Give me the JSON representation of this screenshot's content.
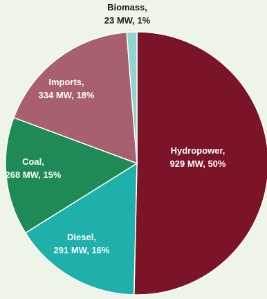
{
  "chart_data": {
    "type": "pie",
    "unit": "MW",
    "start_angle_deg": 0,
    "direction": "clockwise",
    "slices": [
      {
        "name": "Hydropower",
        "value": 929,
        "percent_label": "50%",
        "label_line1": "Hydropower,",
        "label_line2": "929 MW, 50%",
        "color": "#7b1426",
        "label_color": "light"
      },
      {
        "name": "Diesel",
        "value": 291,
        "percent_label": "16%",
        "label_line1": "Diesel,",
        "label_line2": "291 MW, 16%",
        "color": "#20b0ab",
        "label_color": "light"
      },
      {
        "name": "Coal",
        "value": 268,
        "percent_label": "15%",
        "label_line1": "Coal,",
        "label_line2": "268 MW, 15%",
        "color": "#1f8a55",
        "label_color": "light"
      },
      {
        "name": "Imports",
        "value": 334,
        "percent_label": "18%",
        "label_line1": "Imports,",
        "label_line2": "334 MW, 18%",
        "color": "#a8606e",
        "label_color": "light"
      },
      {
        "name": "Biomass",
        "value": 23,
        "percent_label": "1%",
        "label_line1": "Biomass,",
        "label_line2": "23 MW, 1%",
        "color": "#8fd3d3",
        "label_color": "dark"
      }
    ]
  }
}
